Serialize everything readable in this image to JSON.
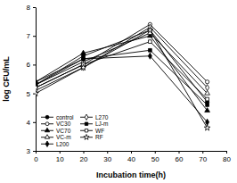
{
  "chart_data": {
    "type": "line",
    "x_label": "Incubation time(h)",
    "y_label": "log CFU/mL",
    "x": [
      0,
      20,
      48,
      72
    ],
    "xlim": [
      0,
      80
    ],
    "xticks": [
      0,
      10,
      20,
      30,
      40,
      50,
      60,
      70,
      80
    ],
    "ylim": [
      3,
      8
    ],
    "yticks": [
      3,
      4,
      5,
      6,
      7,
      8
    ],
    "grid": false,
    "legend": "lower left",
    "series": [
      {
        "name": "control",
        "color": "#000000",
        "marker": "circle",
        "line_style": "solid",
        "values": [
          5.3,
          6.3,
          7.2,
          4.7
        ]
      },
      {
        "name": "VC30",
        "color": "#000000",
        "marker": "circle-open",
        "line_style": "solid",
        "values": [
          5.2,
          6.0,
          7.4,
          5.4
        ]
      },
      {
        "name": "VC70",
        "color": "#000000",
        "marker": "triangle",
        "line_style": "solid",
        "values": [
          5.4,
          6.4,
          7.0,
          4.4
        ]
      },
      {
        "name": "VC-m",
        "color": "#000000",
        "marker": "triangle-open",
        "line_style": "solid",
        "values": [
          5.3,
          6.1,
          7.1,
          5.0
        ]
      },
      {
        "name": "L200",
        "color": "#000000",
        "marker": "diamond",
        "line_style": "solid",
        "values": [
          5.4,
          6.2,
          6.3,
          4.0
        ]
      },
      {
        "name": "L270",
        "color": "#000000",
        "marker": "diamond-open",
        "line_style": "solid",
        "values": [
          5.1,
          5.9,
          7.3,
          5.2
        ]
      },
      {
        "name": "LJ-m",
        "color": "#000000",
        "marker": "square",
        "line_style": "solid",
        "values": [
          5.3,
          6.2,
          6.5,
          4.6
        ]
      },
      {
        "name": "WF",
        "color": "#000000",
        "marker": "square-open",
        "line_style": "solid",
        "values": [
          5.2,
          6.0,
          6.8,
          4.8
        ]
      },
      {
        "name": "RF",
        "color": "#000000",
        "marker": "star-open",
        "line_style": "solid",
        "values": [
          5.0,
          5.9,
          7.2,
          3.8
        ]
      }
    ]
  }
}
